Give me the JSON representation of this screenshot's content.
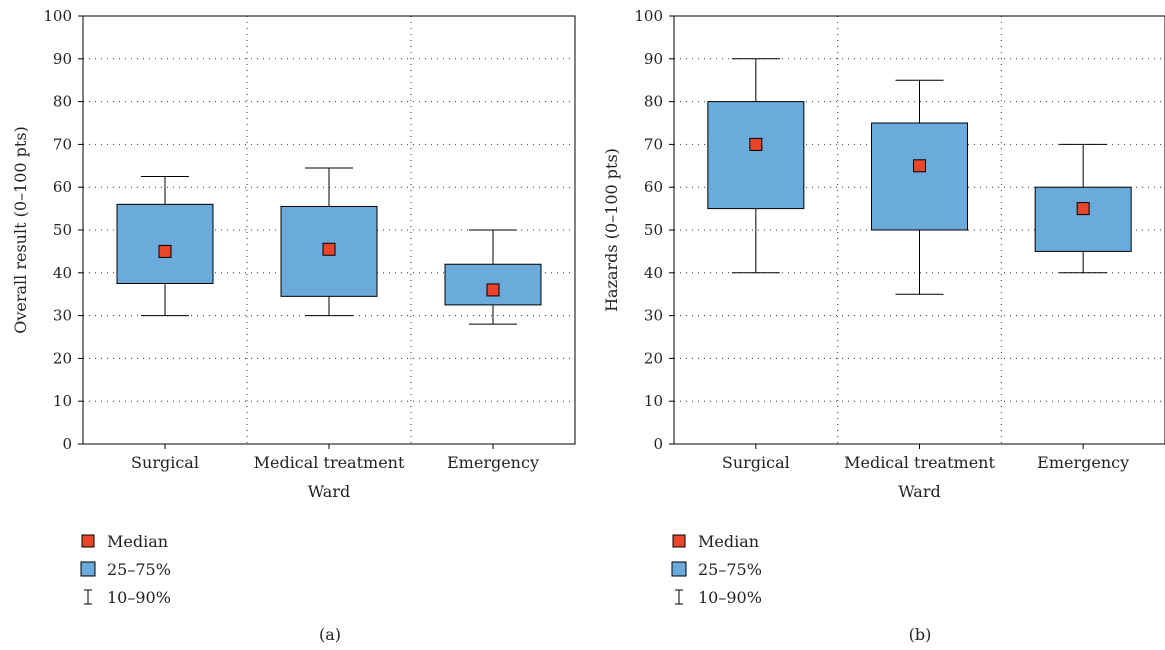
{
  "colors": {
    "box": "#6aabdb",
    "median": "#e8452b",
    "line": "#000000"
  },
  "chart_data": [
    {
      "type": "box",
      "caption": "(a)",
      "xlabel": "Ward",
      "ylabel": "Overall result (0–100 pts)",
      "ylim": [
        0,
        100
      ],
      "yticks": [
        0,
        10,
        20,
        30,
        40,
        50,
        60,
        70,
        80,
        90,
        100
      ],
      "grid": true,
      "categories": [
        "Surgical",
        "Medical treatment",
        "Emergency"
      ],
      "boxes": [
        {
          "p10": 30,
          "q1": 37.5,
          "median": 45,
          "q3": 56,
          "p90": 62.5
        },
        {
          "p10": 30,
          "q1": 34.5,
          "median": 45.5,
          "q3": 55.5,
          "p90": 64.5
        },
        {
          "p10": 28,
          "q1": 32.5,
          "median": 36,
          "q3": 42,
          "p90": 50
        }
      ],
      "legend": {
        "position": "bottom-left",
        "items": [
          "Median",
          "25–75%",
          "10–90%"
        ]
      }
    },
    {
      "type": "box",
      "caption": "(b)",
      "xlabel": "Ward",
      "ylabel": "Hazards (0–100 pts)",
      "ylim": [
        0,
        100
      ],
      "yticks": [
        0,
        10,
        20,
        30,
        40,
        50,
        60,
        70,
        80,
        90,
        100
      ],
      "grid": true,
      "categories": [
        "Surgical",
        "Medical treatment",
        "Emergency"
      ],
      "boxes": [
        {
          "p10": 40,
          "q1": 55,
          "median": 70,
          "q3": 80,
          "p90": 90
        },
        {
          "p10": 35,
          "q1": 50,
          "median": 65,
          "q3": 75,
          "p90": 85
        },
        {
          "p10": 40,
          "q1": 45,
          "median": 55,
          "q3": 60,
          "p90": 70
        }
      ],
      "legend": {
        "position": "bottom-left",
        "items": [
          "Median",
          "25–75%",
          "10–90%"
        ]
      }
    }
  ]
}
